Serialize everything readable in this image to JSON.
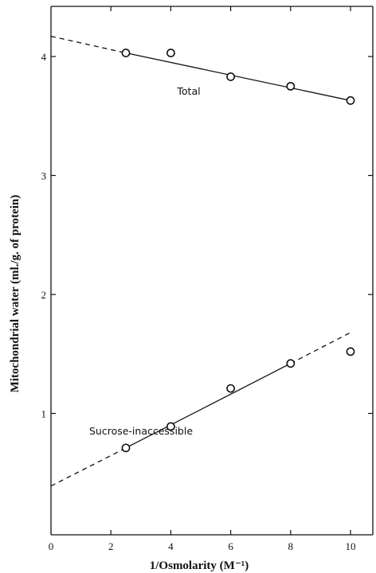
{
  "chart_data": {
    "type": "scatter",
    "title": "",
    "xlabel": "1/Osmolarity (M⁻¹)",
    "ylabel": "Mitochondrial water (ml./g. of protein)",
    "xlim": [
      0,
      11
    ],
    "ylim": [
      0,
      4.4
    ],
    "xticks": [
      0,
      2,
      4,
      6,
      8,
      10
    ],
    "yticks": [
      1,
      2,
      3,
      4
    ],
    "grid": false,
    "legend": "none",
    "series": [
      {
        "name": "Total",
        "x": [
          2.5,
          4,
          6,
          8,
          10
        ],
        "y": [
          4.03,
          4.03,
          3.83,
          3.75,
          3.63
        ],
        "fit": {
          "solid": [
            [
              2.5,
              4.03
            ],
            [
              10,
              3.63
            ]
          ],
          "dashed": [
            [
              0,
              4.17
            ],
            [
              2.5,
              4.03
            ]
          ]
        }
      },
      {
        "name": "Sucrose-inaccessible",
        "x": [
          2.5,
          4,
          6,
          8,
          10
        ],
        "y": [
          0.71,
          0.89,
          1.21,
          1.42,
          1.52
        ],
        "fit": {
          "solid": [
            [
              2.5,
              0.71
            ],
            [
              8,
              1.42
            ]
          ],
          "dashed_low": [
            [
              0,
              0.39
            ],
            [
              2.5,
              0.71
            ]
          ],
          "dashed_high": [
            [
              8,
              1.42
            ],
            [
              10,
              1.68
            ]
          ]
        }
      }
    ]
  }
}
